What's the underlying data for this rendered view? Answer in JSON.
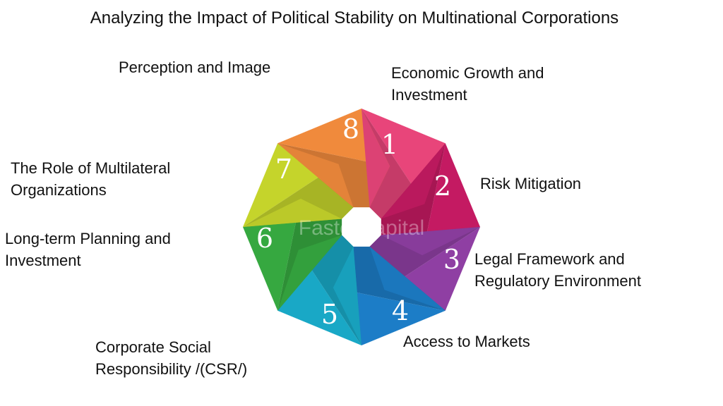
{
  "title": "Analyzing the Impact of Political Stability on Multinational Corporations",
  "watermark": "FasterCapital",
  "items": [
    {
      "number": "1",
      "label_lines": [
        "Economic Growth and",
        "Investment"
      ],
      "color": "#e8457a"
    },
    {
      "number": "2",
      "label_lines": [
        "Risk Mitigation"
      ],
      "color": "#c41a62"
    },
    {
      "number": "3",
      "label_lines": [
        "Legal Framework and",
        "Regulatory Environment"
      ],
      "color": "#8f3fa3"
    },
    {
      "number": "4",
      "label_lines": [
        "Access to Markets"
      ],
      "color": "#1c7dc7"
    },
    {
      "number": "5",
      "label_lines": [
        "Corporate Social",
        "Responsibility /(CSR/)"
      ],
      "color": "#19a8c6"
    },
    {
      "number": "6",
      "label_lines": [
        "Long-term Planning and",
        "Investment"
      ],
      "color": "#36a840"
    },
    {
      "number": "7",
      "label_lines": [
        "The Role of Multilateral",
        "Organizations"
      ],
      "color": "#c5d42b"
    },
    {
      "number": "8",
      "label_lines": [
        "Perception and Image"
      ],
      "color": "#f08a3c"
    }
  ]
}
